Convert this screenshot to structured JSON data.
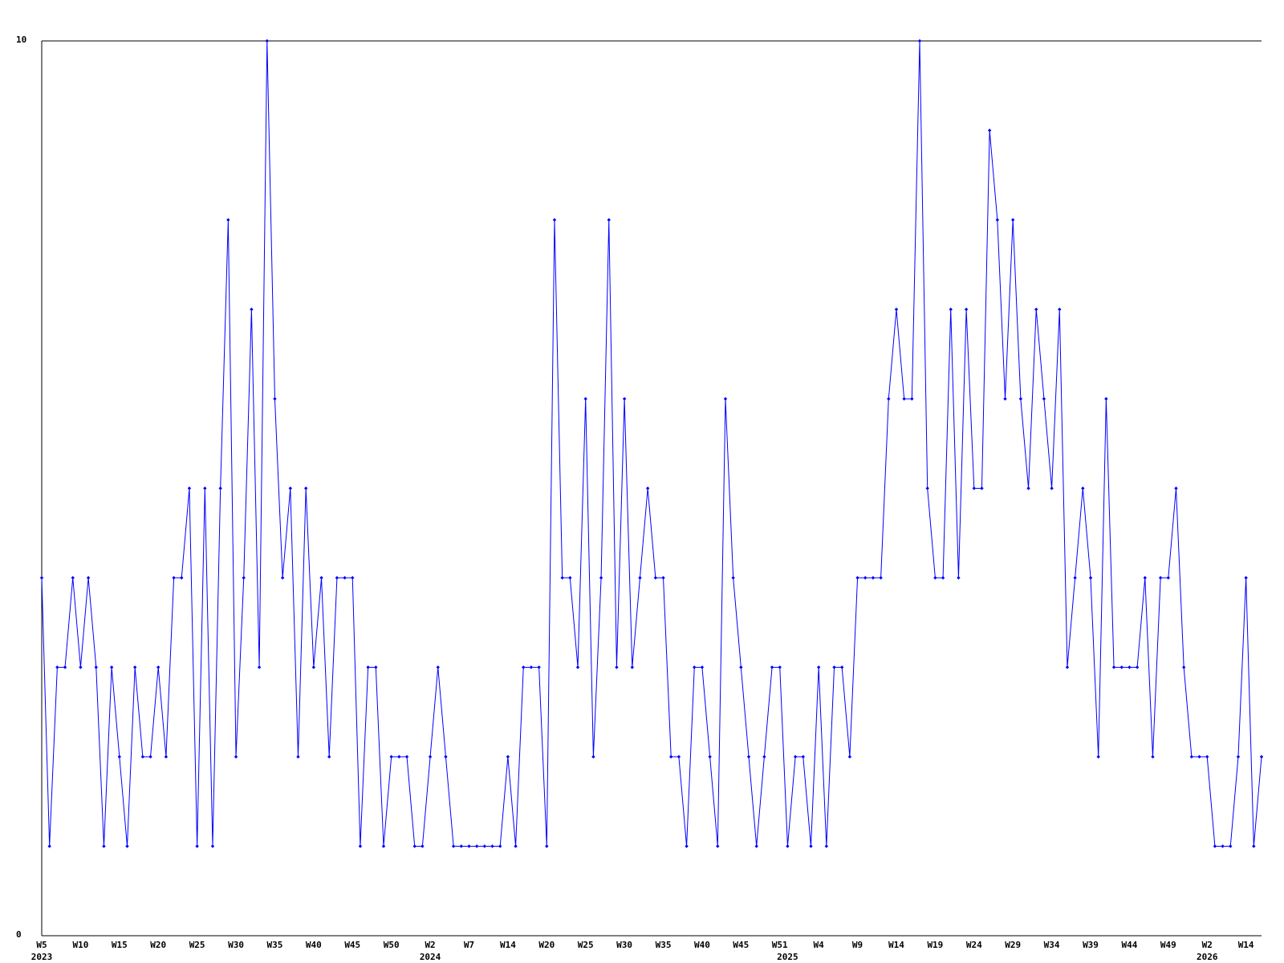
{
  "chart_data": {
    "type": "line",
    "color": "#0000ff",
    "ylim": [
      0,
      10
    ],
    "yticks": [
      0,
      10
    ],
    "categories": [
      "W5",
      null,
      null,
      null,
      null,
      "W10",
      null,
      null,
      null,
      null,
      "W15",
      null,
      null,
      null,
      null,
      "W20",
      null,
      null,
      null,
      null,
      "W25",
      null,
      null,
      null,
      null,
      "W30",
      null,
      null,
      null,
      null,
      "W35",
      null,
      null,
      null,
      null,
      "W40",
      null,
      null,
      null,
      null,
      "W45",
      null,
      null,
      null,
      null,
      "W50",
      null,
      null,
      null,
      null,
      "W2",
      null,
      null,
      null,
      null,
      "W7",
      null,
      null,
      null,
      null,
      "W14",
      null,
      null,
      null,
      null,
      "W20",
      null,
      null,
      null,
      null,
      "W25",
      null,
      null,
      null,
      null,
      "W30",
      null,
      null,
      null,
      null,
      "W35",
      null,
      null,
      null,
      null,
      "W40",
      null,
      null,
      null,
      null,
      "W45",
      null,
      null,
      null,
      null,
      "W51",
      null,
      null,
      null,
      null,
      "W4",
      null,
      null,
      null,
      null,
      "W9",
      null,
      null,
      null,
      null,
      "W14",
      null,
      null,
      null,
      null,
      "W19",
      null,
      null,
      null,
      null,
      "W24",
      null,
      null,
      null,
      null,
      "W29",
      null,
      null,
      null,
      null,
      "W34",
      null,
      null,
      null,
      null,
      "W39",
      null,
      null,
      null,
      null,
      "W44",
      null,
      null,
      null,
      null,
      "W49",
      null,
      null,
      null,
      null,
      "W2",
      null,
      null,
      null,
      null,
      "W14",
      null,
      null
    ],
    "years": [
      "2023",
      null,
      null,
      null,
      null,
      null,
      null,
      null,
      null,
      null,
      null,
      null,
      null,
      null,
      null,
      null,
      null,
      null,
      null,
      null,
      null,
      null,
      null,
      null,
      null,
      null,
      null,
      null,
      null,
      null,
      null,
      null,
      null,
      null,
      null,
      null,
      null,
      null,
      null,
      null,
      null,
      null,
      null,
      null,
      null,
      null,
      null,
      null,
      null,
      null,
      "2024",
      null,
      null,
      null,
      null,
      null,
      null,
      null,
      null,
      null,
      null,
      null,
      null,
      null,
      null,
      null,
      null,
      null,
      null,
      null,
      null,
      null,
      null,
      null,
      null,
      null,
      null,
      null,
      null,
      null,
      null,
      null,
      null,
      null,
      null,
      null,
      null,
      null,
      null,
      null,
      null,
      null,
      null,
      null,
      null,
      null,
      "2025",
      null,
      null,
      null,
      null,
      null,
      null,
      null,
      null,
      null,
      null,
      null,
      null,
      null,
      null,
      null,
      null,
      null,
      null,
      null,
      null,
      null,
      null,
      null,
      null,
      null,
      null,
      null,
      null,
      null,
      null,
      null,
      null,
      null,
      null,
      null,
      null,
      null,
      null,
      null,
      null,
      null,
      null,
      null,
      null,
      null,
      null,
      null,
      null,
      null,
      null,
      null,
      null,
      null,
      "2026",
      null,
      null,
      null,
      null,
      null,
      null,
      null
    ],
    "values": [
      4,
      1,
      3,
      3,
      4,
      3,
      4,
      3,
      1,
      3,
      2,
      1,
      3,
      2,
      2,
      3,
      2,
      4,
      4,
      5,
      1,
      5,
      1,
      5,
      8,
      2,
      4,
      7,
      3,
      10,
      6,
      4,
      5,
      2,
      5,
      3,
      4,
      2,
      4,
      4,
      4,
      1,
      3,
      3,
      1,
      2,
      2,
      2,
      1,
      1,
      2,
      3,
      2,
      1,
      1,
      1,
      1,
      1,
      1,
      1,
      2,
      1,
      3,
      3,
      3,
      1,
      8,
      4,
      4,
      3,
      6,
      2,
      4,
      8,
      3,
      6,
      3,
      4,
      5,
      4,
      4,
      2,
      2,
      1,
      3,
      3,
      2,
      1,
      6,
      4,
      3,
      2,
      1,
      2,
      3,
      3,
      1,
      2,
      2,
      1,
      3,
      1,
      3,
      3,
      2,
      4,
      4,
      4,
      4,
      6,
      7,
      6,
      6,
      10,
      5,
      4,
      4,
      7,
      4,
      7,
      5,
      5,
      9,
      8,
      6,
      8,
      6,
      5,
      7,
      6,
      5,
      7,
      3,
      4,
      5,
      4,
      2,
      6,
      3,
      3,
      3,
      3,
      4,
      2,
      4,
      4,
      5,
      3,
      2,
      2,
      2,
      1,
      1,
      1,
      2,
      4,
      1,
      2
    ]
  }
}
